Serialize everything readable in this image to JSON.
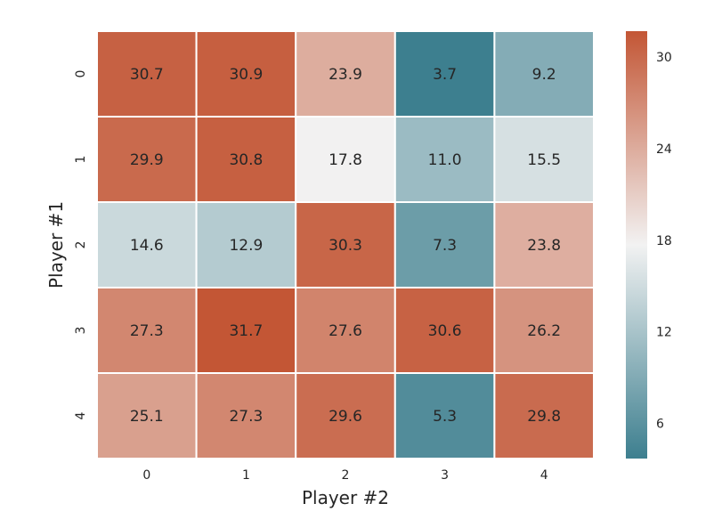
{
  "chart_data": {
    "type": "heatmap",
    "title": "",
    "xlabel": "Player #2",
    "ylabel": "Player #1",
    "x_categories": [
      "0",
      "1",
      "2",
      "3",
      "4"
    ],
    "y_categories": [
      "0",
      "1",
      "2",
      "3",
      "4"
    ],
    "values": [
      [
        30.7,
        30.9,
        23.9,
        3.7,
        9.2
      ],
      [
        29.9,
        30.8,
        17.8,
        11.0,
        15.5
      ],
      [
        14.6,
        12.9,
        30.3,
        7.3,
        23.8
      ],
      [
        27.3,
        31.7,
        27.6,
        30.6,
        26.2
      ],
      [
        25.1,
        27.3,
        29.6,
        5.3,
        29.8
      ]
    ],
    "value_labels": [
      [
        "30.7",
        "30.9",
        "23.9",
        "3.7",
        "9.2"
      ],
      [
        "29.9",
        "30.8",
        "17.8",
        "11.0",
        "15.5"
      ],
      [
        "14.6",
        "12.9",
        "30.3",
        "7.3",
        "23.8"
      ],
      [
        "27.3",
        "31.7",
        "27.6",
        "30.6",
        "26.2"
      ],
      [
        "25.1",
        "27.3",
        "29.6",
        "5.3",
        "29.8"
      ]
    ],
    "colorbar": {
      "vmin": 3.7,
      "vmax": 31.7,
      "ticks": [
        6,
        12,
        18,
        24,
        30
      ],
      "tick_labels": [
        "6",
        "12",
        "18",
        "24",
        "30"
      ],
      "low_color": "#3d7f8f",
      "mid_color": "#f2f2f2",
      "high_color": "#c35635"
    },
    "grid": false,
    "cell_border_color": "#ffffff"
  }
}
